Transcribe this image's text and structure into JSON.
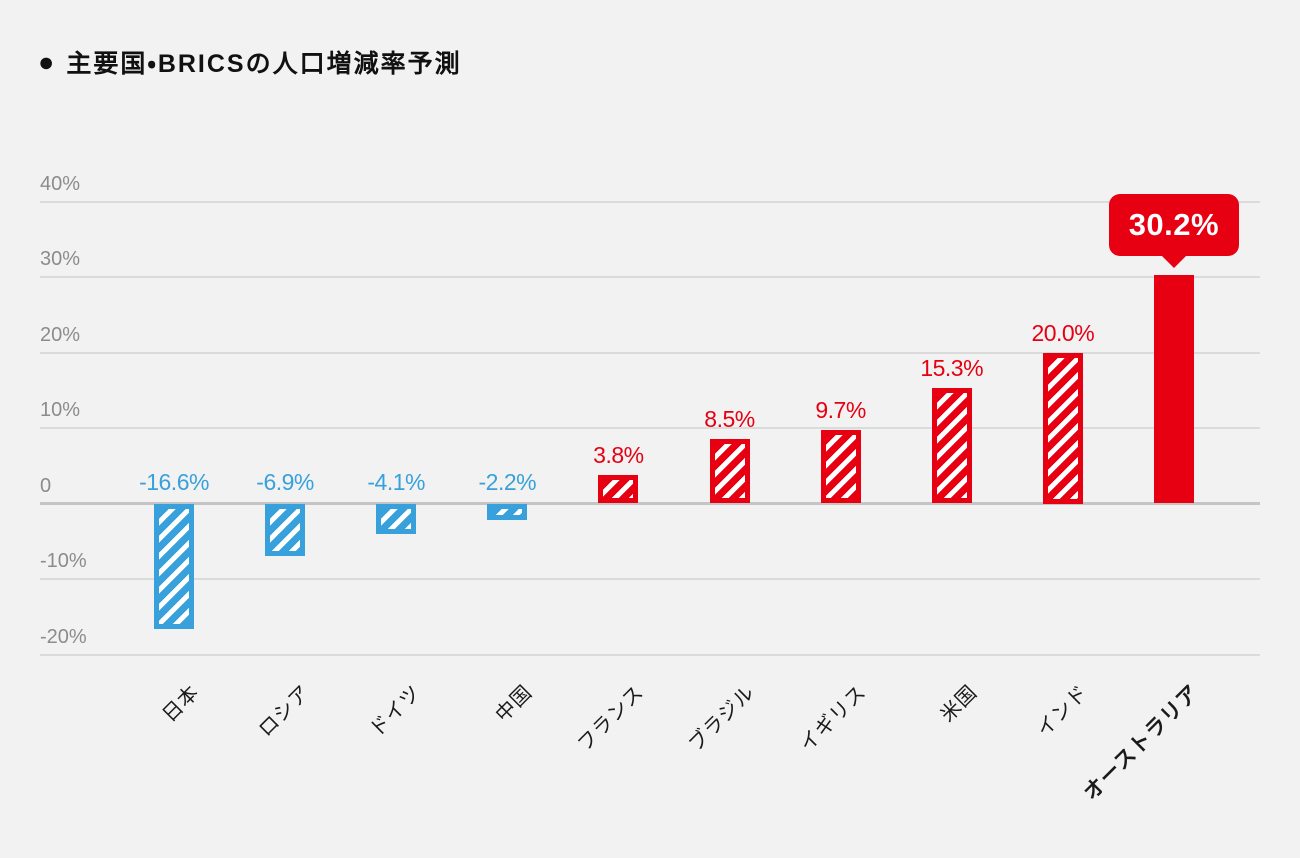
{
  "header": {
    "bullet": "●",
    "title": "主要国・BRICSの人口増減率予測"
  },
  "chart_data": {
    "type": "bar",
    "title": "主要国・BRICSの人口増減率予測",
    "unit": "%",
    "ylim": [
      -20,
      40
    ],
    "grid": true,
    "y_axis": {
      "ticks": [
        40,
        30,
        20,
        10,
        0,
        -10,
        -20
      ],
      "tick_labels": [
        "40%",
        "30%",
        "20%",
        "10%",
        "0",
        "-10%",
        "-20%"
      ]
    },
    "categories": [
      "日本",
      "ロシア",
      "ドイツ",
      "中国",
      "フランス",
      "ブラジル",
      "イギリス",
      "米国",
      "インド",
      "オーストラリア"
    ],
    "values": [
      -16.6,
      -6.9,
      -4.1,
      -2.2,
      3.8,
      8.5,
      9.7,
      15.3,
      20.0,
      30.2
    ],
    "bars": [
      {
        "category": "日本",
        "value": -16.6,
        "display": "-16.6%",
        "color": "#38a1db",
        "fill": "hatched",
        "emphasis": false
      },
      {
        "category": "ロシア",
        "value": -6.9,
        "display": "-6.9%",
        "color": "#38a1db",
        "fill": "hatched",
        "emphasis": false
      },
      {
        "category": "ドイツ",
        "value": -4.1,
        "display": "-4.1%",
        "color": "#38a1db",
        "fill": "hatched",
        "emphasis": false
      },
      {
        "category": "中国",
        "value": -2.2,
        "display": "-2.2%",
        "color": "#38a1db",
        "fill": "hatched",
        "emphasis": false
      },
      {
        "category": "フランス",
        "value": 3.8,
        "display": "3.8%",
        "color": "#e60012",
        "fill": "hatched",
        "emphasis": false
      },
      {
        "category": "ブラジル",
        "value": 8.5,
        "display": "8.5%",
        "color": "#e60012",
        "fill": "hatched",
        "emphasis": false
      },
      {
        "category": "イギリス",
        "value": 9.7,
        "display": "9.7%",
        "color": "#e60012",
        "fill": "hatched",
        "emphasis": false
      },
      {
        "category": "米国",
        "value": 15.3,
        "display": "15.3%",
        "color": "#e60012",
        "fill": "hatched",
        "emphasis": false
      },
      {
        "category": "インド",
        "value": 20.0,
        "display": "20.0%",
        "color": "#e60012",
        "fill": "hatched",
        "emphasis": false
      },
      {
        "category": "オーストラリア",
        "value": 30.2,
        "display": "30.2%",
        "color": "#e60012",
        "fill": "solid",
        "emphasis": true,
        "callout": "30.2%"
      }
    ],
    "colors": {
      "negative": "#38a1db",
      "positive": "#e60012",
      "background": "#f2f2f2",
      "gridline": "#dbdbdb",
      "zero_line": "#c5c5c5",
      "axis_text": "#8c8c8c",
      "category_text": "#1a1a1a",
      "callout_text": "#ffffff"
    },
    "legend": null
  }
}
